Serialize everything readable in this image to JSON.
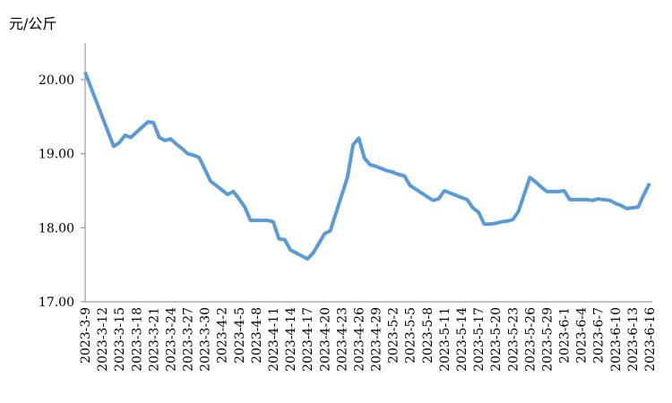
{
  "chart_data": {
    "type": "line",
    "y_label": "元/公斤",
    "categories": [
      "2023-3-9",
      null,
      null,
      "2023-3-12",
      null,
      null,
      "2023-3-15",
      null,
      null,
      "2023-3-18",
      null,
      null,
      "2023-3-21",
      null,
      null,
      "2023-3-24",
      null,
      null,
      "2023-3-27",
      null,
      null,
      "2023-3-30",
      null,
      null,
      "2023-4-2",
      null,
      null,
      "2023-4-5",
      null,
      null,
      "2023-4-8",
      null,
      null,
      "2023-4-11",
      null,
      null,
      "2023-4-14",
      null,
      null,
      "2023-4-17",
      null,
      null,
      "2023-4-20",
      null,
      null,
      "2023-4-23",
      null,
      null,
      "2023-4-26",
      null,
      null,
      "2023-4-29",
      null,
      null,
      "2023-5-2",
      null,
      null,
      "2023-5-5",
      null,
      null,
      "2023-5-8",
      null,
      null,
      "2023-5-11",
      null,
      null,
      "2023-5-14",
      null,
      null,
      "2023-5-17",
      null,
      null,
      "2023-5-20",
      null,
      null,
      "2023-5-23",
      null,
      null,
      "2023-5-26",
      null,
      null,
      "2023-5-29",
      null,
      null,
      "2023-6-1",
      null,
      null,
      "2023-6-4",
      null,
      null,
      "2023-6-7",
      null,
      null,
      "2023-6-10",
      null,
      null,
      "2023-6-13",
      null,
      null,
      "2023-6-16"
    ],
    "values": [
      20.1,
      19.9,
      19.7,
      19.5,
      19.3,
      19.1,
      19.15,
      19.25,
      19.22,
      19.29,
      19.36,
      19.43,
      19.42,
      19.22,
      19.18,
      19.2,
      19.13,
      19.07,
      19.0,
      18.98,
      18.95,
      18.79,
      18.63,
      18.57,
      18.51,
      18.45,
      18.49,
      18.39,
      18.28,
      18.1,
      18.1,
      18.1,
      18.1,
      18.08,
      17.85,
      17.84,
      17.7,
      17.66,
      17.62,
      17.58,
      17.66,
      17.79,
      17.92,
      17.96,
      18.2,
      18.44,
      18.68,
      19.12,
      19.21,
      18.94,
      18.85,
      18.83,
      18.8,
      18.77,
      18.75,
      18.72,
      18.7,
      18.57,
      18.52,
      18.47,
      18.42,
      18.37,
      18.39,
      18.5,
      18.47,
      18.44,
      18.41,
      18.38,
      18.27,
      18.21,
      18.05,
      18.05,
      18.06,
      18.08,
      18.09,
      18.11,
      18.22,
      18.45,
      18.68,
      18.62,
      18.55,
      18.49,
      18.49,
      18.49,
      18.5,
      18.38,
      18.38,
      18.38,
      18.38,
      18.37,
      18.39,
      18.38,
      18.37,
      18.33,
      18.3,
      18.26,
      18.27,
      18.28,
      18.45,
      18.6
    ],
    "color": "#5b9bd5",
    "ylim": [
      17,
      20.5
    ],
    "yticks": [
      {
        "value": 17,
        "label": "17.00"
      },
      {
        "value": 18,
        "label": "18.00"
      },
      {
        "value": 19,
        "label": "19.00"
      },
      {
        "value": 20,
        "label": "20.00"
      }
    ],
    "grid": false
  }
}
